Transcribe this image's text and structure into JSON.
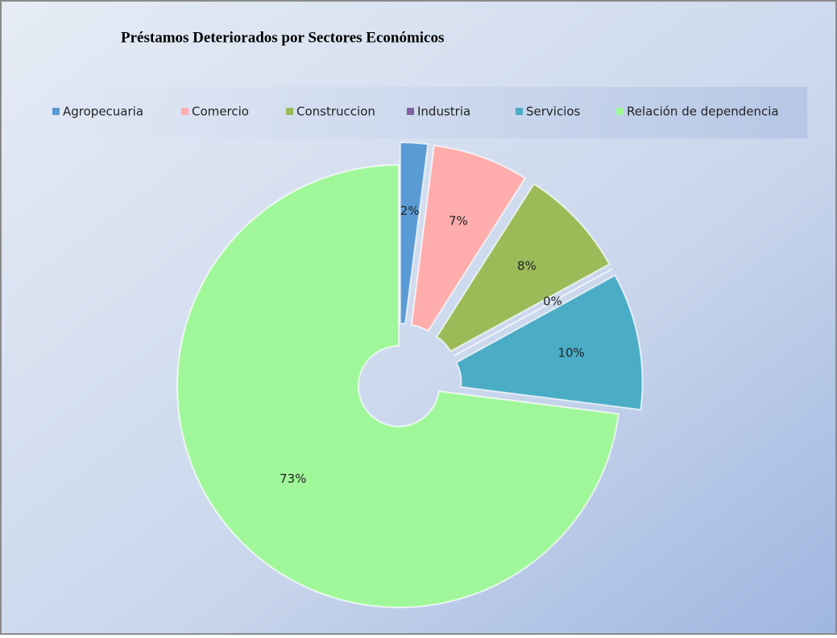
{
  "chart_data": {
    "type": "donut",
    "title": "Préstamos Deteriorados por Sectores Económicos",
    "categories": [
      "Agropecuaria",
      "Comercio",
      "Construccion",
      "Industria",
      "Servicios",
      "Relación de dependencia"
    ],
    "values": [
      2,
      7,
      8,
      0,
      10,
      73
    ],
    "value_labels": [
      "2%",
      "7%",
      "8%",
      "0%",
      "10%",
      "73%"
    ],
    "colors": [
      "#5b9bd5",
      "#ffacac",
      "#9bbb59",
      "#8064a2",
      "#4bacc6",
      "#a0f79a"
    ],
    "legend": "top"
  }
}
